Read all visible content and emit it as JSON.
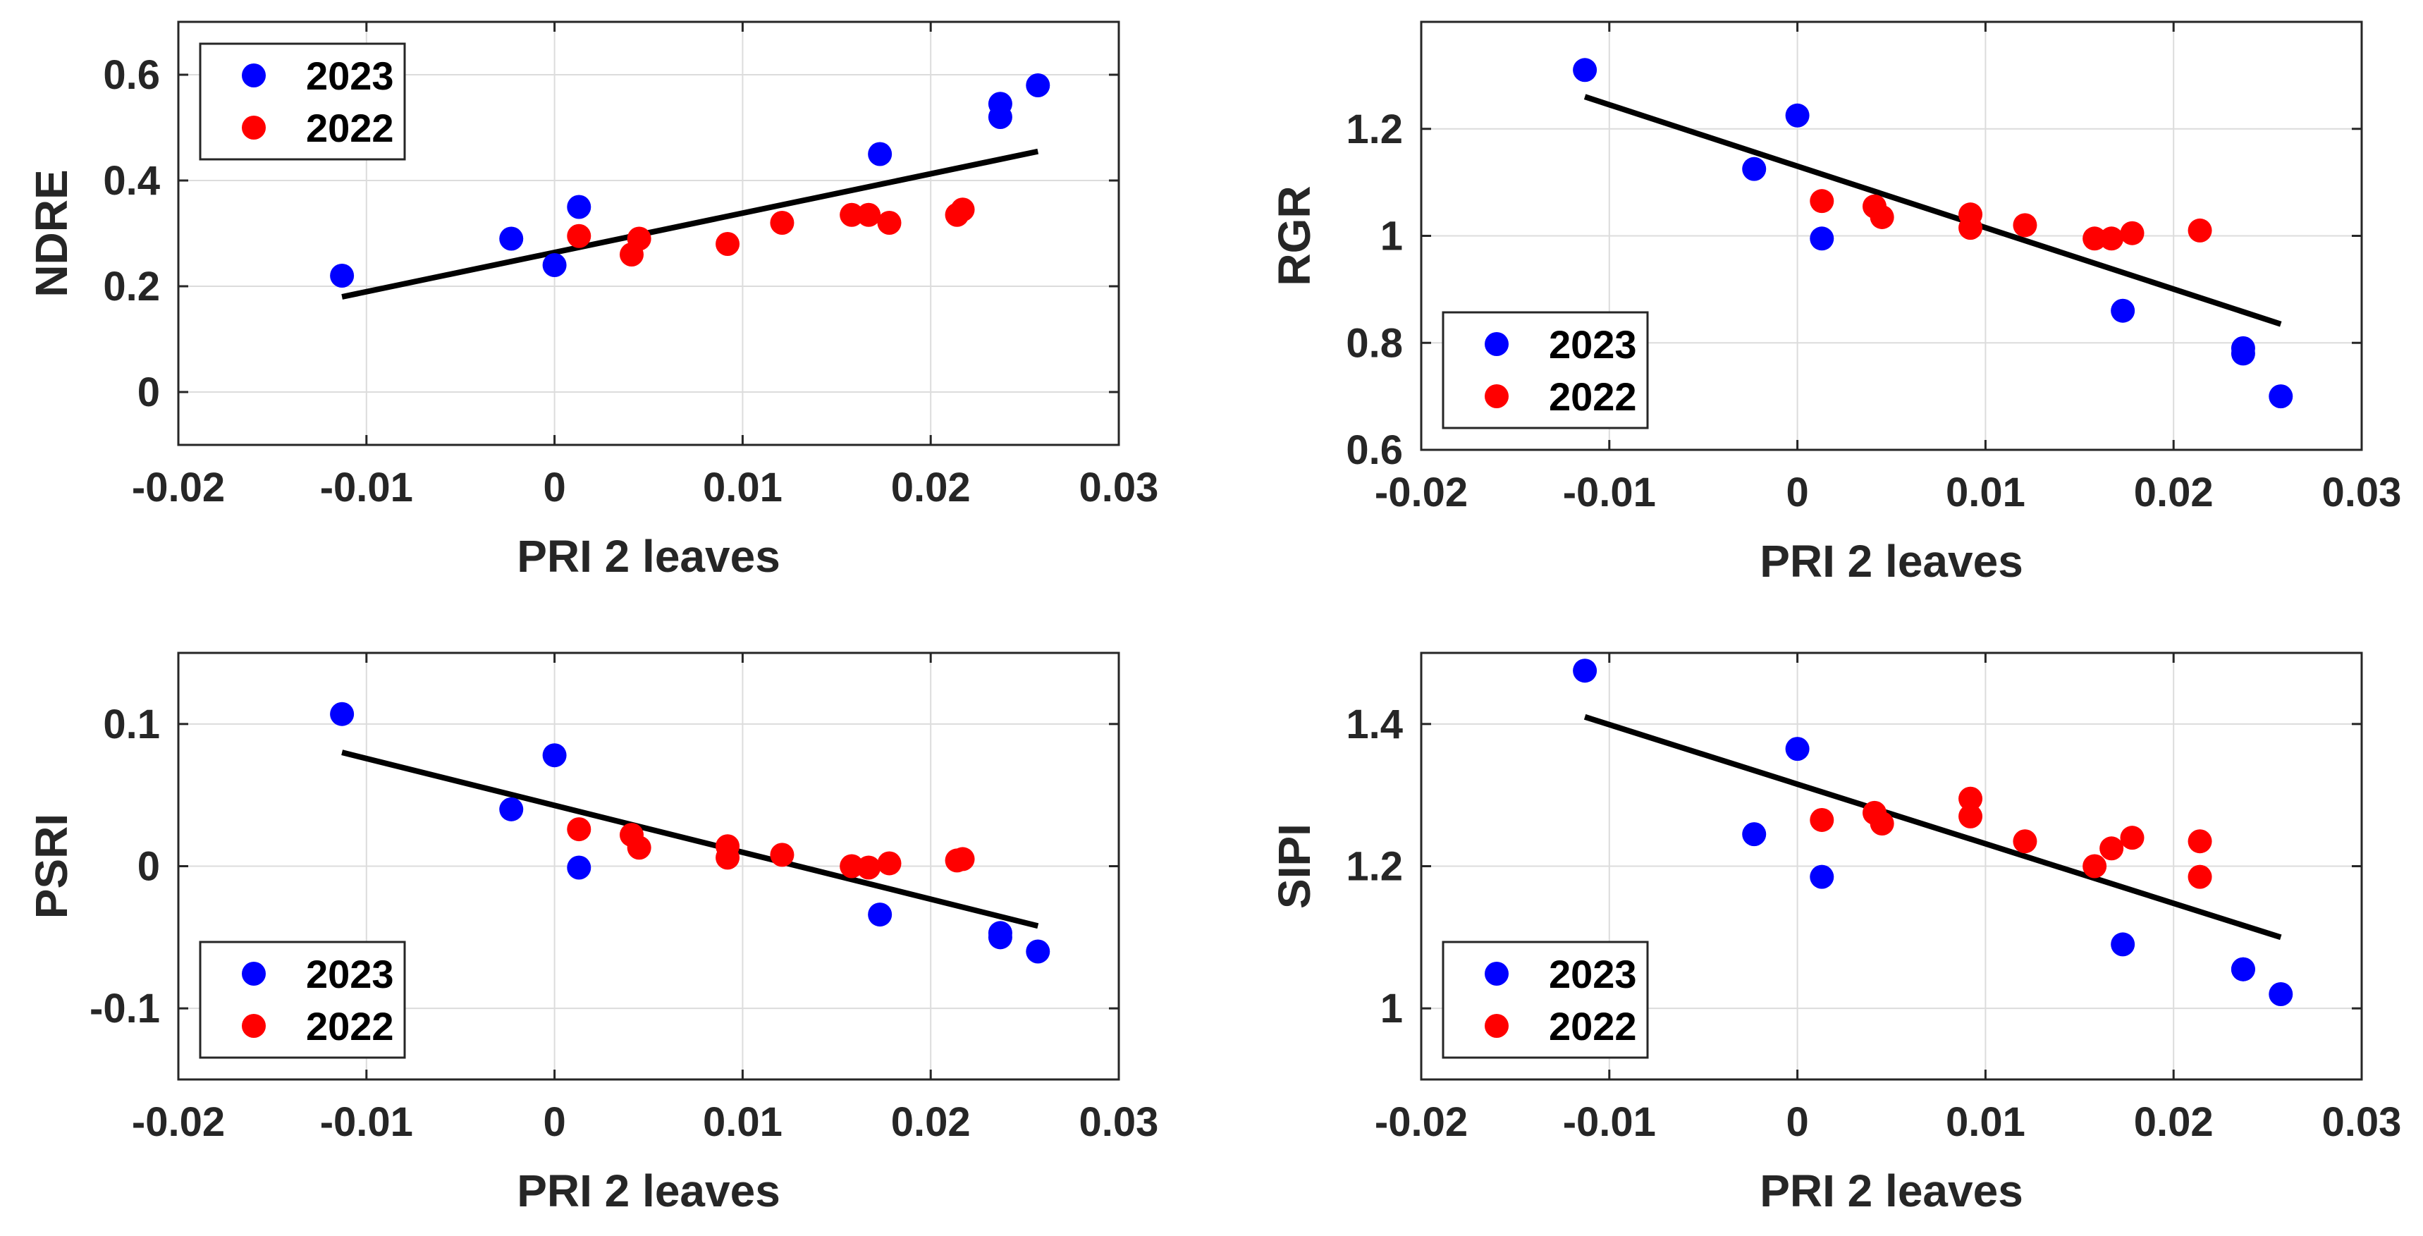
{
  "colors": {
    "y2023": "#0000ff",
    "y2022": "#ff0000",
    "fit": "#000000"
  },
  "chart_data": [
    {
      "id": "ndre",
      "type": "scatter",
      "xlabel": "PRI 2 leaves",
      "ylabel": "NDRE",
      "xlim": [
        -0.02,
        0.03
      ],
      "ylim": [
        -0.1,
        0.7
      ],
      "xticks": [
        -0.02,
        -0.01,
        0,
        0.01,
        0.02,
        0.03
      ],
      "xtick_labels": [
        "-0.02",
        "-0.01",
        "0",
        "0.01",
        "0.02",
        "0.03"
      ],
      "yticks": [
        0,
        0.2,
        0.4,
        0.6
      ],
      "ytick_labels": [
        "0",
        "0.2",
        "0.4",
        "0.6"
      ],
      "grid": true,
      "legend_position": "top-left",
      "series": [
        {
          "name": "2023",
          "color": "#0000ff",
          "x": [
            -0.0113,
            -0.0023,
            0.0,
            0.0013,
            0.0173,
            0.0237,
            0.0237,
            0.0257
          ],
          "y": [
            0.22,
            0.29,
            0.24,
            0.35,
            0.45,
            0.52,
            0.545,
            0.58
          ]
        },
        {
          "name": "2022",
          "color": "#ff0000",
          "x": [
            0.0013,
            0.0041,
            0.0045,
            0.0092,
            0.0121,
            0.0158,
            0.0167,
            0.0178,
            0.0214,
            0.0217
          ],
          "y": [
            0.295,
            0.26,
            0.29,
            0.28,
            0.32,
            0.335,
            0.335,
            0.32,
            0.335,
            0.345
          ]
        }
      ],
      "fit_line": {
        "x": [
          -0.0113,
          0.0257
        ],
        "y": [
          0.18,
          0.455
        ]
      }
    },
    {
      "id": "rgr",
      "type": "scatter",
      "xlabel": "PRI 2 leaves",
      "ylabel": "RGR",
      "xlim": [
        -0.02,
        0.03
      ],
      "ylim": [
        0.6,
        1.4
      ],
      "xticks": [
        -0.02,
        -0.01,
        0,
        0.01,
        0.02,
        0.03
      ],
      "xtick_labels": [
        "-0.02",
        "-0.01",
        "0",
        "0.01",
        "0.02",
        "0.03"
      ],
      "yticks": [
        0.6,
        0.8,
        1.0,
        1.2
      ],
      "ytick_labels": [
        "0.6",
        "0.8",
        "1",
        "1.2"
      ],
      "grid": true,
      "legend_position": "bottom-left",
      "series": [
        {
          "name": "2023",
          "color": "#0000ff",
          "x": [
            -0.0113,
            -0.0023,
            0.0,
            0.0013,
            0.0173,
            0.0237,
            0.0237,
            0.0257
          ],
          "y": [
            1.31,
            1.125,
            1.225,
            0.995,
            0.86,
            0.78,
            0.79,
            0.7
          ]
        },
        {
          "name": "2022",
          "color": "#ff0000",
          "x": [
            0.0013,
            0.0041,
            0.0045,
            0.0092,
            0.0092,
            0.0121,
            0.0158,
            0.0167,
            0.0178,
            0.0214
          ],
          "y": [
            1.065,
            1.055,
            1.035,
            1.04,
            1.015,
            1.02,
            0.995,
            0.995,
            1.005,
            1.01
          ]
        }
      ],
      "fit_line": {
        "x": [
          -0.0113,
          0.0257
        ],
        "y": [
          1.26,
          0.835
        ]
      }
    },
    {
      "id": "psri",
      "type": "scatter",
      "xlabel": "PRI 2 leaves",
      "ylabel": "PSRI",
      "xlim": [
        -0.02,
        0.03
      ],
      "ylim": [
        -0.15,
        0.15
      ],
      "xticks": [
        -0.02,
        -0.01,
        0,
        0.01,
        0.02,
        0.03
      ],
      "xtick_labels": [
        "-0.02",
        "-0.01",
        "0",
        "0.01",
        "0.02",
        "0.03"
      ],
      "yticks": [
        -0.1,
        0,
        0.1
      ],
      "ytick_labels": [
        "-0.1",
        "0",
        "0.1"
      ],
      "grid": true,
      "legend_position": "bottom-left",
      "series": [
        {
          "name": "2023",
          "color": "#0000ff",
          "x": [
            -0.0113,
            -0.0023,
            0.0,
            0.0013,
            0.0173,
            0.0237,
            0.0237,
            0.0257
          ],
          "y": [
            0.107,
            0.04,
            0.078,
            -0.001,
            -0.034,
            -0.047,
            -0.05,
            -0.06
          ]
        },
        {
          "name": "2022",
          "color": "#ff0000",
          "x": [
            0.0013,
            0.0041,
            0.0045,
            0.0092,
            0.0092,
            0.0121,
            0.0158,
            0.0167,
            0.0178,
            0.0214,
            0.0217
          ],
          "y": [
            0.026,
            0.022,
            0.013,
            0.014,
            0.006,
            0.008,
            0.0,
            -0.001,
            0.002,
            0.004,
            0.005
          ]
        }
      ],
      "fit_line": {
        "x": [
          -0.0113,
          0.0257
        ],
        "y": [
          0.08,
          -0.042
        ]
      }
    },
    {
      "id": "sipi",
      "type": "scatter",
      "xlabel": "PRI 2 leaves",
      "ylabel": "SIPI",
      "xlim": [
        -0.02,
        0.03
      ],
      "ylim": [
        0.9,
        1.5
      ],
      "xticks": [
        -0.02,
        -0.01,
        0,
        0.01,
        0.02,
        0.03
      ],
      "xtick_labels": [
        "-0.02",
        "-0.01",
        "0",
        "0.01",
        "0.02",
        "0.03"
      ],
      "yticks": [
        1.0,
        1.2,
        1.4
      ],
      "ytick_labels": [
        "1",
        "1.2",
        "1.4"
      ],
      "grid": true,
      "legend_position": "bottom-left",
      "series": [
        {
          "name": "2023",
          "color": "#0000ff",
          "x": [
            -0.0113,
            -0.0023,
            0.0,
            0.0013,
            0.0173,
            0.0237,
            0.0237,
            0.0257
          ],
          "y": [
            1.475,
            1.245,
            1.365,
            1.185,
            1.09,
            1.055,
            1.055,
            1.02
          ]
        },
        {
          "name": "2022",
          "color": "#ff0000",
          "x": [
            0.0013,
            0.0041,
            0.0045,
            0.0092,
            0.0092,
            0.0121,
            0.0158,
            0.0167,
            0.0178,
            0.0214,
            0.0214
          ],
          "y": [
            1.265,
            1.275,
            1.26,
            1.295,
            1.27,
            1.235,
            1.2,
            1.225,
            1.24,
            1.235,
            1.185
          ]
        }
      ],
      "fit_line": {
        "x": [
          -0.0113,
          0.0257
        ],
        "y": [
          1.41,
          1.1
        ]
      }
    }
  ]
}
